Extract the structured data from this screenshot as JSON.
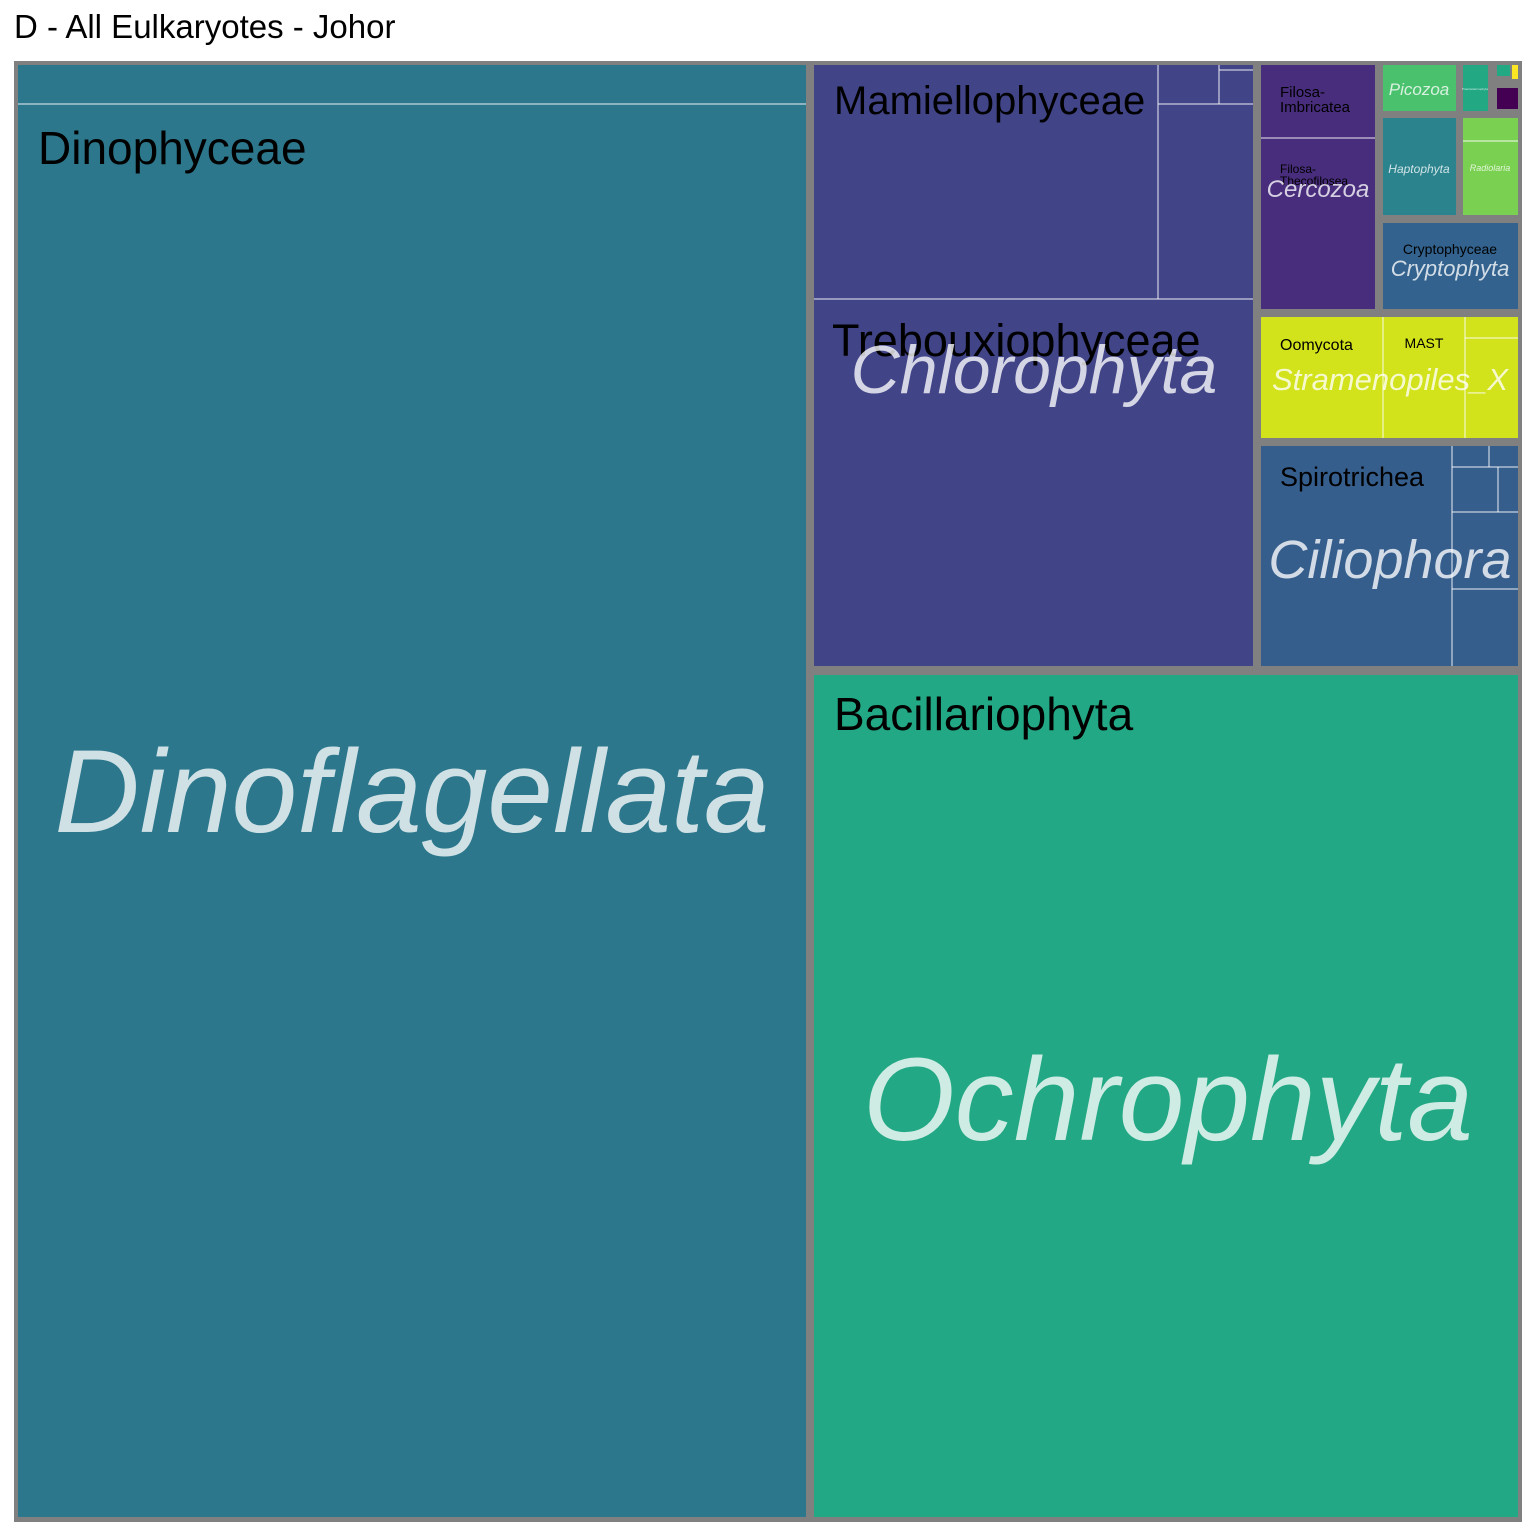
{
  "chart_data": {
    "type": "treemap",
    "title": "D - All Eulkaryotes - Johor",
    "colors": {
      "Dinoflagellata": "#2c778c",
      "Ochrophyta": "#22a884",
      "Chlorophyta": "#414487",
      "Cercozoa": "#472d7b",
      "Picozoa": "#4ac16d",
      "Haptophyta": "#2a838d",
      "Radiolaria": "#7ad151",
      "Cryptophyta": "#32628d",
      "Stramenopiles_X": "#d2e21b",
      "Ciliophora": "#355e8d",
      "small_a": "#23a884",
      "small_b": "#440154",
      "small_c": "#fde725"
    },
    "phyla": [
      {
        "name": "Dinoflagellata",
        "classes": [
          {
            "name": "Dinophyceae",
            "label": "Dinophyceae"
          },
          {
            "name": "other-1",
            "label": ""
          }
        ]
      },
      {
        "name": "Ochrophyta",
        "classes": [
          {
            "name": "Bacillariophyta",
            "label": "Bacillariophyta"
          }
        ]
      },
      {
        "name": "Chlorophyta",
        "classes": [
          {
            "name": "Mamiellophyceae",
            "label": "Mamiellophyceae"
          },
          {
            "name": "Trebouxiophyceae",
            "label": "Trebouxiophyceae"
          }
        ]
      },
      {
        "name": "Cercozoa",
        "classes": [
          {
            "name": "Filosa-Imbricatea",
            "label": "Filosa-\nImbricatea"
          },
          {
            "name": "Filosa-Thecofilosea",
            "label": "Filosa-\nThecofilosea"
          }
        ]
      },
      {
        "name": "Picozoa",
        "classes": []
      },
      {
        "name": "Haptophyta",
        "classes": []
      },
      {
        "name": "Radiolaria",
        "classes": []
      },
      {
        "name": "Cryptophyta",
        "classes": [
          {
            "name": "Cryptophyceae",
            "label": "Cryptophyceae"
          }
        ]
      },
      {
        "name": "Stramenopiles_X",
        "classes": [
          {
            "name": "Oomycota",
            "label": "Oomycota"
          },
          {
            "name": "MAST",
            "label": "MAST"
          }
        ]
      },
      {
        "name": "Ciliophora",
        "classes": [
          {
            "name": "Spirotrichea",
            "label": "Spirotrichea"
          }
        ]
      }
    ]
  }
}
